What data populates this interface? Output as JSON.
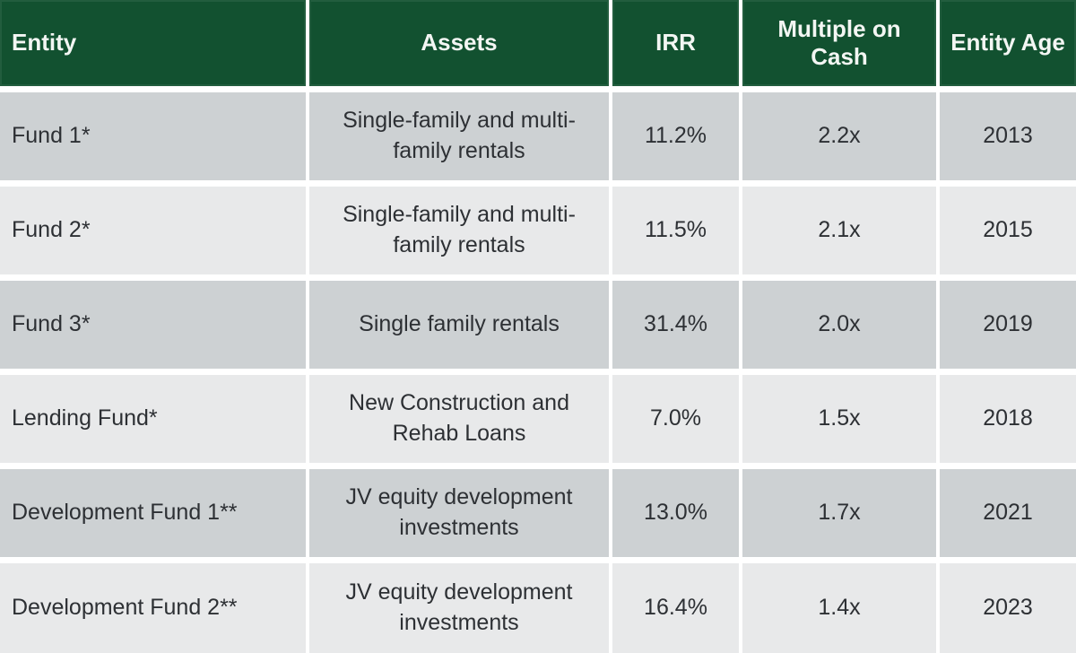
{
  "table": {
    "columns": [
      {
        "key": "entity",
        "label": "Entity"
      },
      {
        "key": "assets",
        "label": "Assets"
      },
      {
        "key": "irr",
        "label": "IRR"
      },
      {
        "key": "multiple",
        "label": "Multiple on Cash"
      },
      {
        "key": "age",
        "label": "Entity Age"
      }
    ],
    "rows": [
      {
        "entity": "Fund 1*",
        "assets": "Single-family and multi-family rentals",
        "irr": "11.2%",
        "multiple": "2.2x",
        "age": "2013"
      },
      {
        "entity": "Fund 2*",
        "assets": "Single-family and multi-family rentals",
        "irr": "11.5%",
        "multiple": "2.1x",
        "age": "2015"
      },
      {
        "entity": "Fund 3*",
        "assets": "Single family rentals",
        "irr": "31.4%",
        "multiple": "2.0x",
        "age": "2019"
      },
      {
        "entity": "Lending Fund*",
        "assets": "New Construction and Rehab Loans",
        "irr": "7.0%",
        "multiple": "1.5x",
        "age": "2018"
      },
      {
        "entity": "Development Fund 1**",
        "assets": "JV equity development investments",
        "irr": "13.0%",
        "multiple": "1.7x",
        "age": "2021"
      },
      {
        "entity": "Development Fund 2**",
        "assets": "JV equity development investments",
        "irr": "16.4%",
        "multiple": "1.4x",
        "age": "2023"
      }
    ]
  },
  "colors": {
    "header_bg": "#125130",
    "header_text": "#f3f6f3",
    "row_odd": "#cdd1d3",
    "row_even": "#e8e9ea",
    "body_text": "#2d3034",
    "separator": "#ffffff"
  },
  "chart_data": {
    "type": "table",
    "columns": [
      "Entity",
      "Assets",
      "IRR",
      "Multiple on Cash",
      "Entity Age"
    ],
    "rows": [
      [
        "Fund 1*",
        "Single-family and multi-family rentals",
        "11.2%",
        "2.2x",
        "2013"
      ],
      [
        "Fund 2*",
        "Single-family and multi-family rentals",
        "11.5%",
        "2.1x",
        "2015"
      ],
      [
        "Fund 3*",
        "Single family rentals",
        "31.4%",
        "2.0x",
        "2019"
      ],
      [
        "Lending Fund*",
        "New Construction and Rehab Loans",
        "7.0%",
        "1.5x",
        "2018"
      ],
      [
        "Development Fund 1**",
        "JV equity development investments",
        "13.0%",
        "1.7x",
        "2021"
      ],
      [
        "Development Fund 2**",
        "JV equity development investments",
        "16.4%",
        "1.4x",
        "2023"
      ]
    ],
    "irr_values_pct": [
      11.2,
      11.5,
      31.4,
      7.0,
      13.0,
      16.4
    ],
    "multiple_on_cash_values": [
      2.2,
      2.1,
      2.0,
      1.5,
      1.7,
      1.4
    ],
    "entity_age_years": [
      2013,
      2015,
      2019,
      2018,
      2021,
      2023
    ]
  }
}
